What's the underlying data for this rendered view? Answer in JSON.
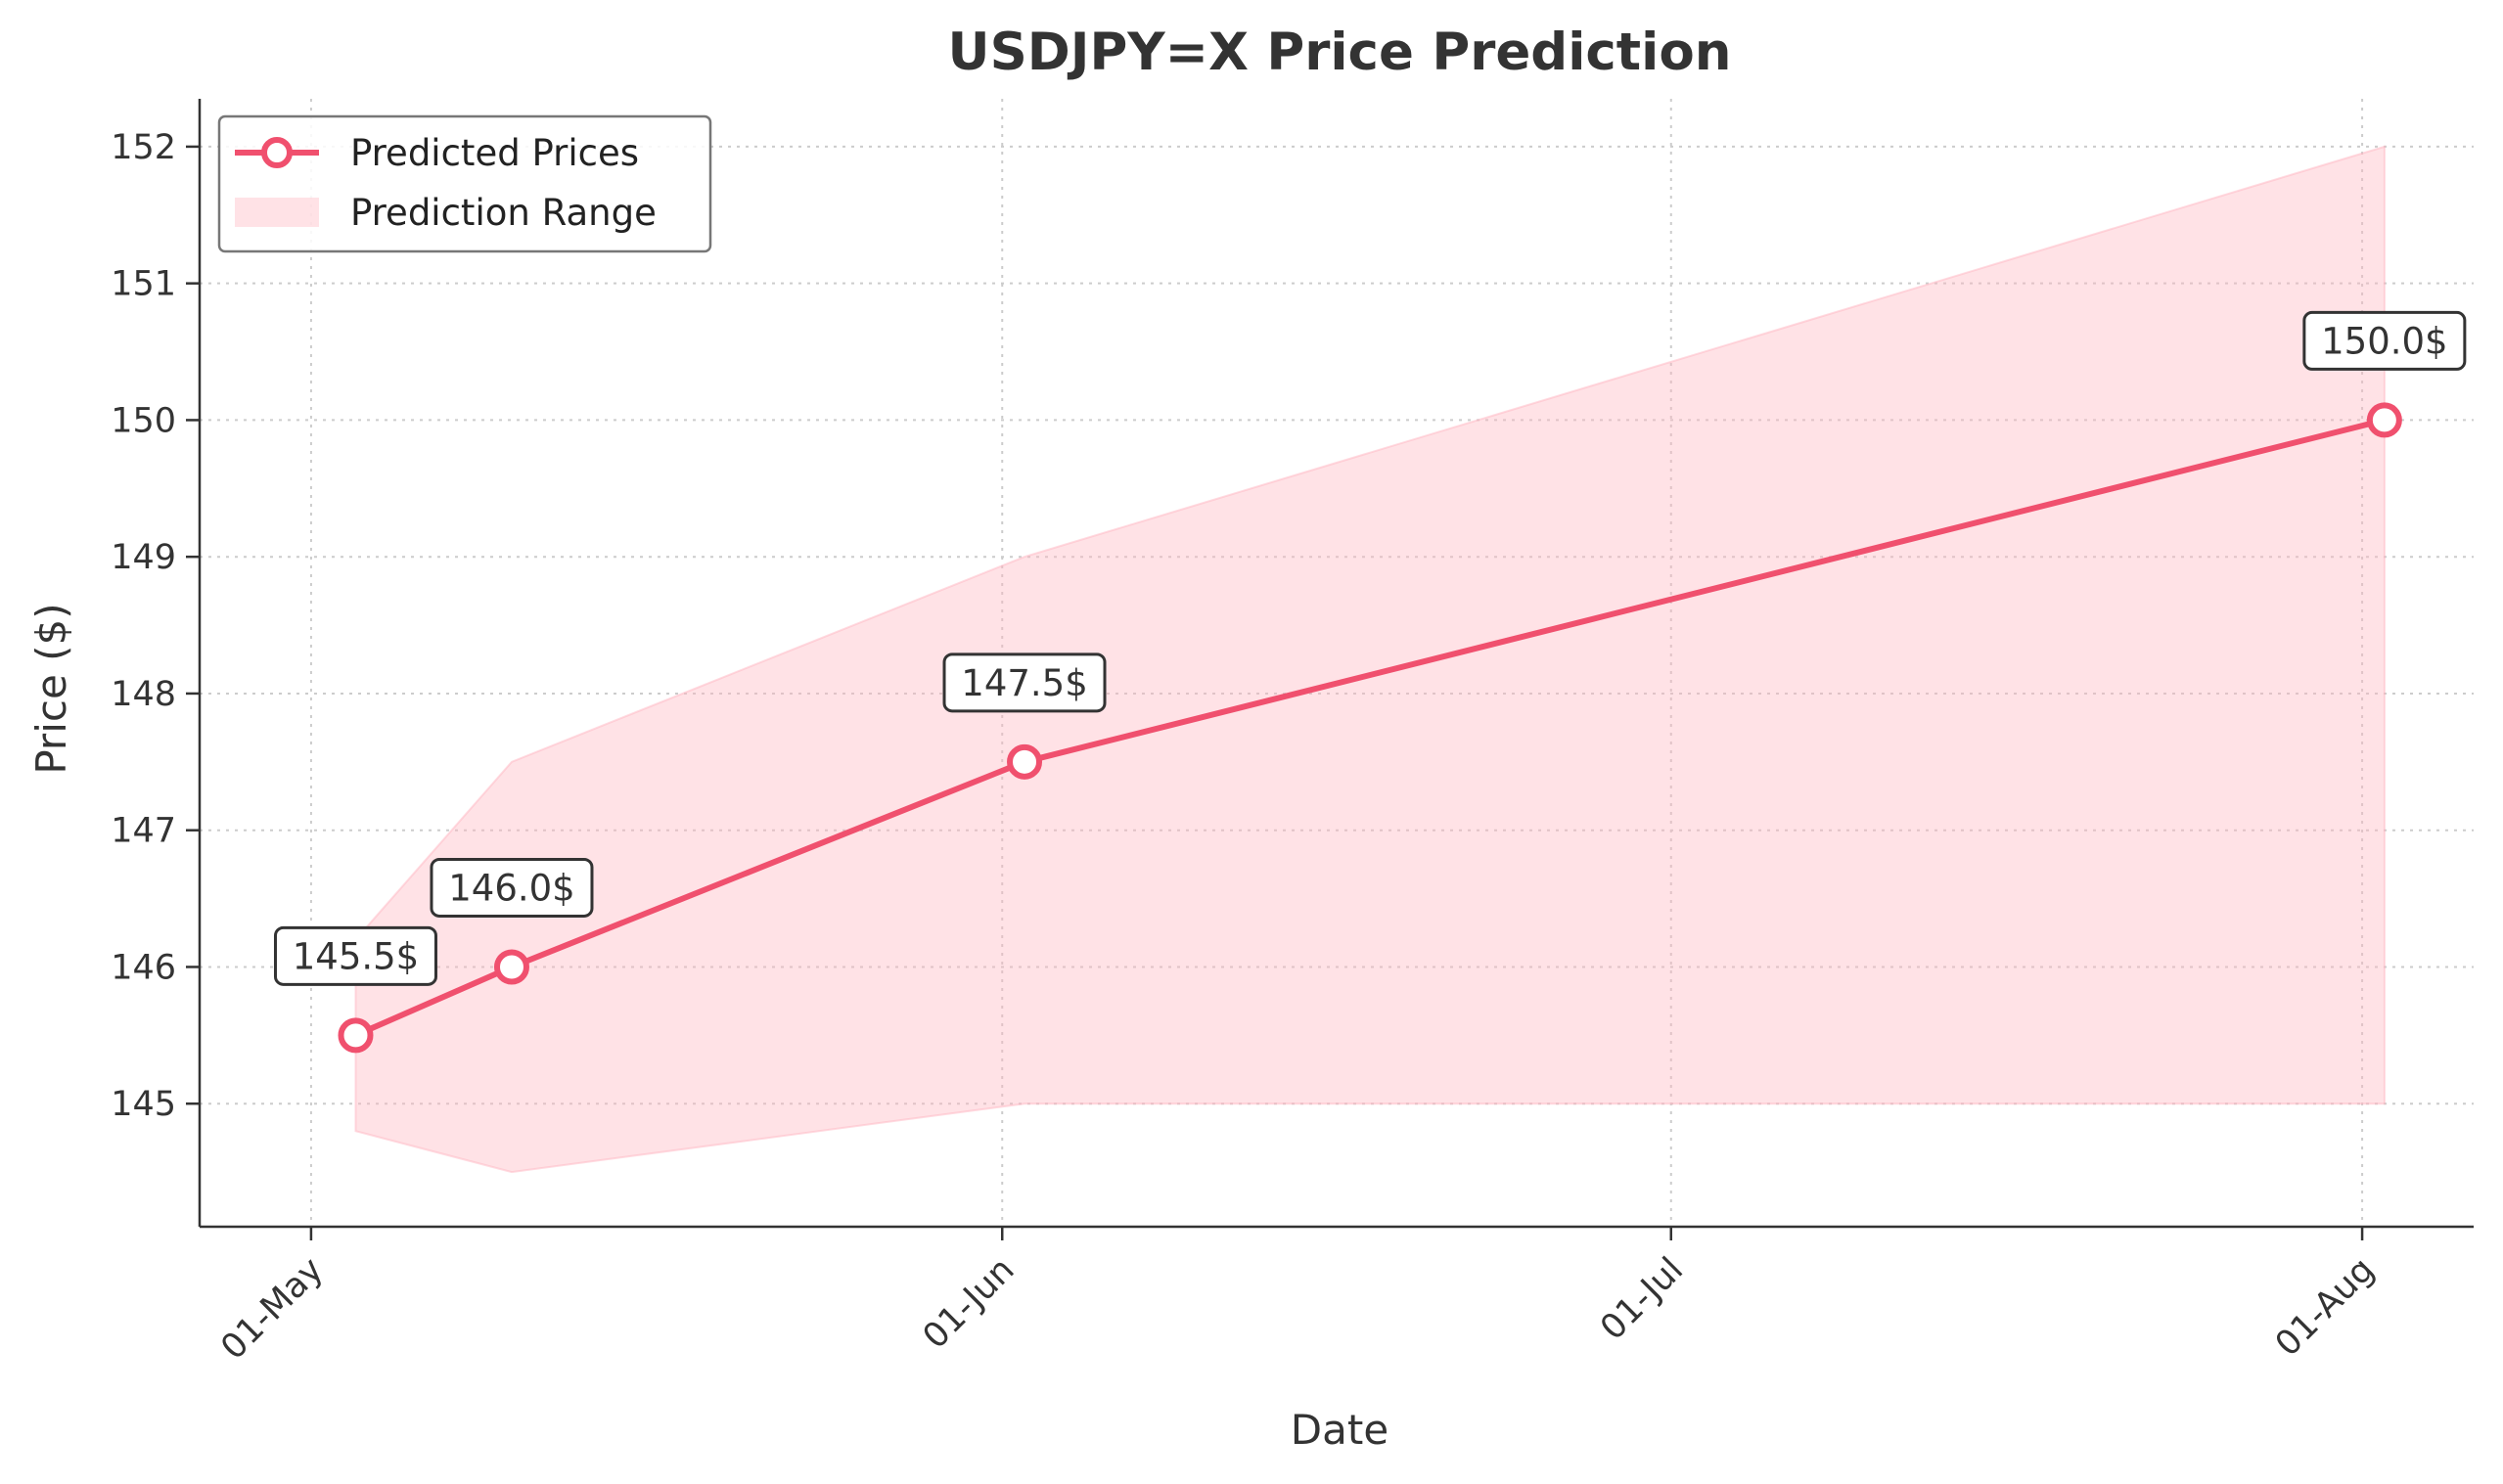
{
  "chart_data": {
    "type": "line",
    "title": "USDJPY=X Price Prediction",
    "xlabel": "Date",
    "ylabel": "Price ($)",
    "x_ticks": [
      "01-May",
      "01-Jun",
      "01-Jul",
      "01-Aug"
    ],
    "y_ticks": [
      145,
      146,
      147,
      148,
      149,
      150,
      151,
      152
    ],
    "ylim": [
      144.1,
      152.35
    ],
    "xlim": [
      "2024-04-26",
      "2024-08-06"
    ],
    "grid": true,
    "legend_position": "top-left",
    "series": [
      {
        "name": "Predicted Prices",
        "color": "#f0506e",
        "x": [
          "2024-05-03",
          "2024-05-10",
          "2024-06-02",
          "2024-08-02"
        ],
        "values": [
          145.5,
          146.0,
          147.5,
          150.0
        ],
        "labels": [
          "145.5$",
          "146.0$",
          "147.5$",
          "150.0$"
        ]
      }
    ],
    "range": {
      "name": "Prediction Range",
      "color": "#ffb6c1",
      "x": [
        "2024-05-03",
        "2024-05-10",
        "2024-06-02",
        "2024-08-02"
      ],
      "lower": [
        144.8,
        144.5,
        145.0,
        145.0
      ],
      "upper": [
        146.2,
        147.5,
        149.0,
        152.0
      ]
    }
  }
}
